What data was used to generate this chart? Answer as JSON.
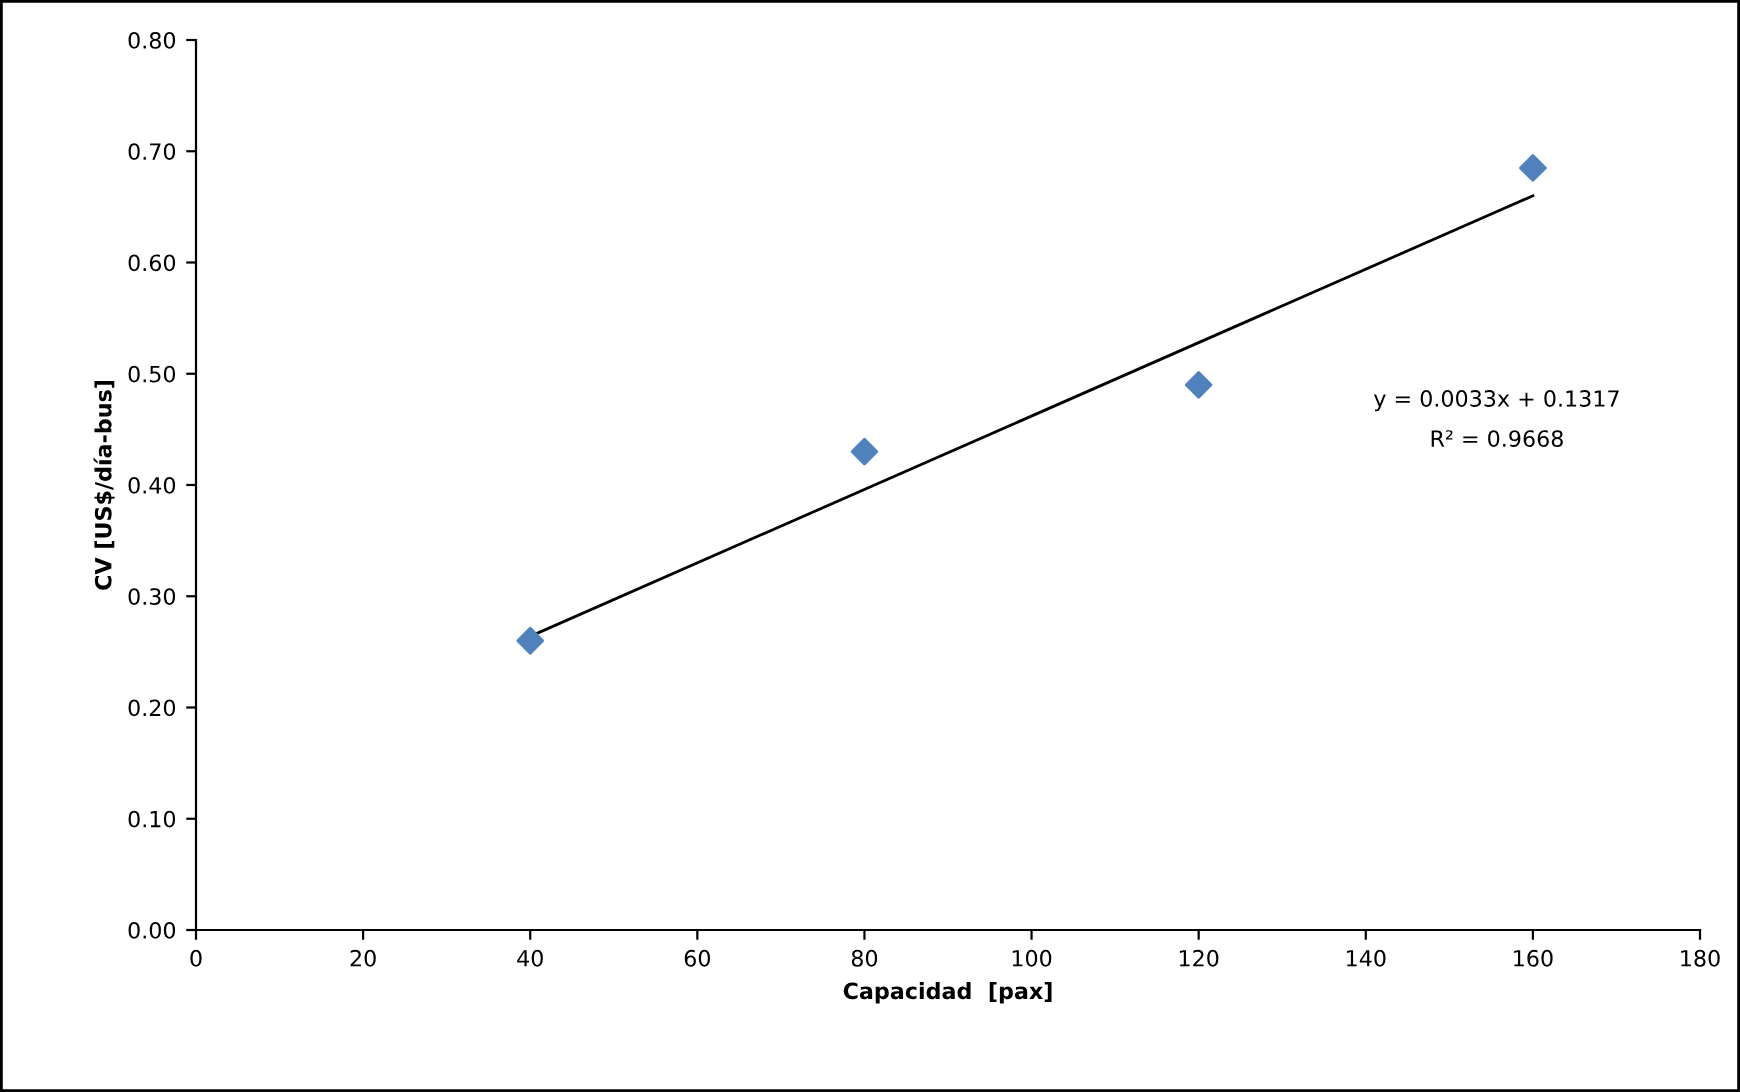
{
  "chart_data": {
    "type": "scatter",
    "xlabel": "Capacidad  [pax]",
    "ylabel": "CV [US$/día-bus]",
    "series": [
      {
        "color": "#4f81bd",
        "marker": "diamond",
        "x": [
          40,
          80,
          120,
          160
        ],
        "values": [
          0.26,
          0.43,
          0.49,
          0.685
        ]
      },
      {
        "type": "line",
        "color": "#000000",
        "marker": "none",
        "line_style": "solid",
        "x": [
          40,
          160
        ],
        "values": [
          0.264,
          0.66
        ]
      }
    ],
    "annotations": [
      "y = 0.0033x + 0.1317",
      "R² = 0.9668"
    ],
    "xlim": [
      0,
      180
    ],
    "xticks": [
      0,
      20,
      40,
      60,
      80,
      100,
      120,
      140,
      160,
      180
    ],
    "ylim": [
      0,
      0.8
    ],
    "yticks": [
      {
        "value": 0,
        "label": "0.00"
      },
      {
        "value": 0.1,
        "label": "0.10"
      },
      {
        "value": 0.2,
        "label": "0.20"
      },
      {
        "value": 0.3,
        "label": "0.30"
      },
      {
        "value": 0.4,
        "label": "0.40"
      },
      {
        "value": 0.5,
        "label": "0.50"
      },
      {
        "value": 0.6,
        "label": "0.60"
      },
      {
        "value": 0.7,
        "label": "0.70"
      },
      {
        "value": 0.8,
        "label": "0.80"
      }
    ],
    "grid": false,
    "legend": false
  }
}
